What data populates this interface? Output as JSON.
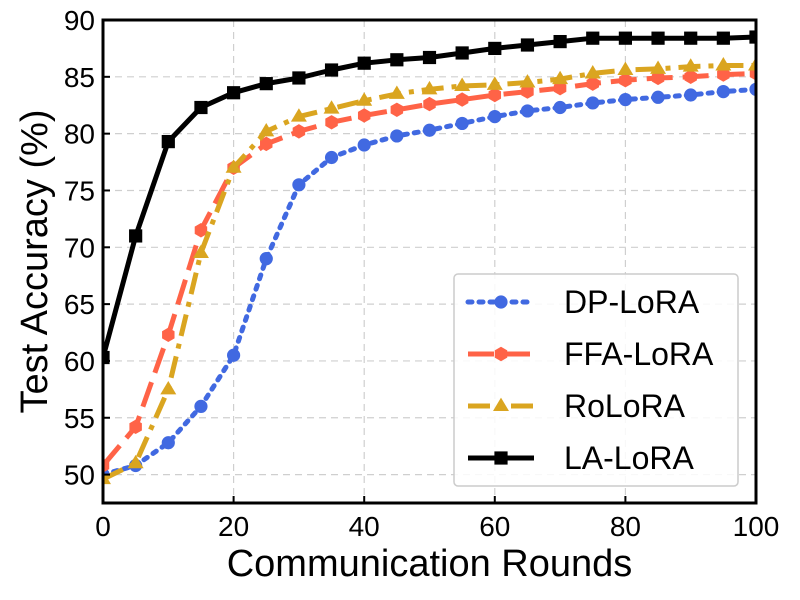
{
  "chart_data": {
    "type": "line",
    "title": "",
    "xlabel": "Communication Rounds",
    "ylabel": "Test Accuracy (%)",
    "xlim": [
      0,
      100
    ],
    "ylim": [
      47.5,
      90
    ],
    "xticks": [
      0,
      20,
      40,
      60,
      80,
      100
    ],
    "yticks": [
      50,
      55,
      60,
      65,
      70,
      75,
      80,
      85,
      90
    ],
    "grid": true,
    "legend_position": "lower-right",
    "series": [
      {
        "name": "DP-LoRA",
        "color": "#4169e1",
        "line_style": "dotted",
        "marker": "circle",
        "x": [
          0,
          5,
          10,
          15,
          20,
          25,
          30,
          35,
          40,
          45,
          50,
          55,
          60,
          65,
          70,
          75,
          80,
          85,
          90,
          95,
          100
        ],
        "y": [
          50.0,
          50.8,
          52.8,
          56.0,
          60.5,
          69.0,
          75.5,
          77.9,
          79.0,
          79.8,
          80.3,
          80.9,
          81.5,
          82.0,
          82.3,
          82.7,
          83.0,
          83.2,
          83.4,
          83.7,
          83.9
        ]
      },
      {
        "name": "FFA-LoRA",
        "color": "#ff6347",
        "line_style": "dashed",
        "marker": "hexagon",
        "x": [
          0,
          5,
          10,
          15,
          20,
          25,
          30,
          35,
          40,
          45,
          50,
          55,
          60,
          65,
          70,
          75,
          80,
          85,
          90,
          95,
          100
        ],
        "y": [
          50.8,
          54.2,
          62.3,
          71.5,
          77.0,
          79.1,
          80.2,
          81.0,
          81.6,
          82.1,
          82.6,
          83.0,
          83.4,
          83.7,
          84.0,
          84.4,
          84.7,
          84.9,
          85.0,
          85.2,
          85.3
        ]
      },
      {
        "name": "RoLoRA",
        "color": "#daa520",
        "line_style": "dashdot",
        "marker": "triangle",
        "x": [
          0,
          5,
          10,
          15,
          20,
          25,
          30,
          35,
          40,
          45,
          50,
          55,
          60,
          65,
          70,
          75,
          80,
          85,
          90,
          95,
          100
        ],
        "y": [
          49.6,
          51.0,
          57.5,
          69.5,
          77.0,
          80.2,
          81.5,
          82.2,
          82.9,
          83.5,
          83.9,
          84.2,
          84.3,
          84.5,
          84.8,
          85.3,
          85.6,
          85.7,
          85.9,
          86.0,
          86.0
        ]
      },
      {
        "name": "LA-LoRA",
        "color": "#000000",
        "line_style": "solid",
        "marker": "square",
        "x": [
          0,
          5,
          10,
          15,
          20,
          25,
          30,
          35,
          40,
          45,
          50,
          55,
          60,
          65,
          70,
          75,
          80,
          85,
          90,
          95,
          100
        ],
        "y": [
          60.3,
          71.0,
          79.3,
          82.3,
          83.6,
          84.4,
          84.9,
          85.6,
          86.2,
          86.5,
          86.7,
          87.1,
          87.5,
          87.8,
          88.1,
          88.4,
          88.4,
          88.4,
          88.4,
          88.4,
          88.5
        ]
      }
    ]
  }
}
